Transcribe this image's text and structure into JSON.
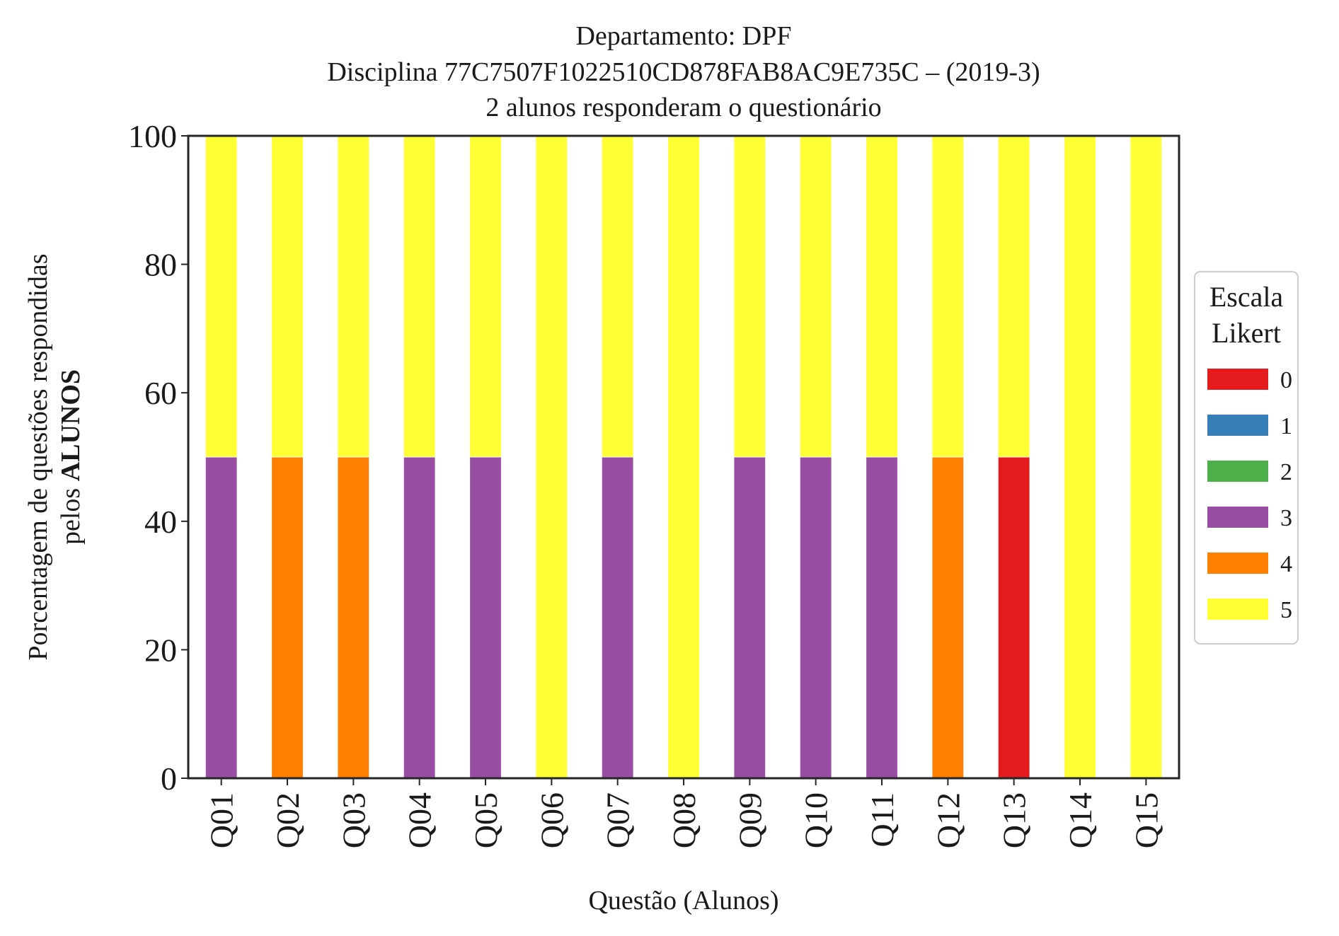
{
  "chart_data": {
    "type": "bar",
    "stacked": true,
    "title_lines": [
      "Departamento: DPF",
      "Disciplina 77C7507F1022510CD878FAB8AC9E735C – (2019-3)",
      "2 alunos responderam o questionário"
    ],
    "xlabel": "Questão (Alunos)",
    "ylabel_line1": "Porcentagem de questões respondidas",
    "ylabel_line2_prefix": "pelos",
    "ylabel_line2_bold": "ALUNOS",
    "ylim": [
      0,
      100
    ],
    "yticks": [
      0,
      20,
      40,
      60,
      80,
      100
    ],
    "grid": false,
    "legend_placement": "right",
    "legend": {
      "title_lines": [
        "Escala",
        "Likert"
      ],
      "entries": [
        "0",
        "1",
        "2",
        "3",
        "4",
        "5"
      ],
      "colors": [
        "#e41a1c",
        "#377eb8",
        "#4daf4a",
        "#984ea3",
        "#ff7f00",
        "#ffff33"
      ]
    },
    "categories": [
      "Q01",
      "Q02",
      "Q03",
      "Q04",
      "Q05",
      "Q06",
      "Q07",
      "Q08",
      "Q09",
      "Q10",
      "Q11",
      "Q12",
      "Q13",
      "Q14",
      "Q15"
    ],
    "series": [
      {
        "name": "0",
        "color": "#e41a1c",
        "values": [
          0,
          0,
          0,
          0,
          0,
          0,
          0,
          0,
          0,
          0,
          0,
          0,
          50,
          0,
          0
        ]
      },
      {
        "name": "1",
        "color": "#377eb8",
        "values": [
          0,
          0,
          0,
          0,
          0,
          0,
          0,
          0,
          0,
          0,
          0,
          0,
          0,
          0,
          0
        ]
      },
      {
        "name": "2",
        "color": "#4daf4a",
        "values": [
          0,
          0,
          0,
          0,
          0,
          0,
          0,
          0,
          0,
          0,
          0,
          0,
          0,
          0,
          0
        ]
      },
      {
        "name": "3",
        "color": "#984ea3",
        "values": [
          50,
          0,
          0,
          50,
          50,
          0,
          50,
          0,
          50,
          50,
          50,
          0,
          0,
          0,
          0
        ]
      },
      {
        "name": "4",
        "color": "#ff7f00",
        "values": [
          0,
          50,
          50,
          0,
          0,
          0,
          0,
          0,
          0,
          0,
          0,
          50,
          0,
          0,
          0
        ]
      },
      {
        "name": "5",
        "color": "#ffff33",
        "values": [
          50,
          50,
          50,
          50,
          50,
          100,
          50,
          100,
          50,
          50,
          50,
          50,
          50,
          100,
          100
        ]
      }
    ]
  }
}
